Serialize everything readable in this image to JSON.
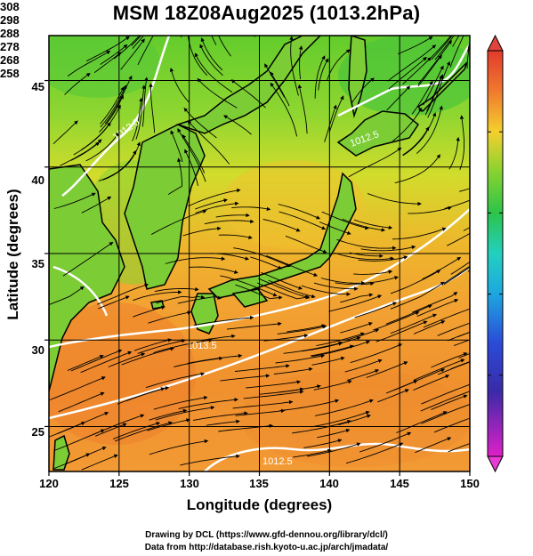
{
  "title": "MSM 18Z08Aug2025 (1013.2hPa)",
  "xlabel": "Longitude (degrees)",
  "ylabel": "Latitude  (degrees)",
  "credits": [
    "Drawing by DCL (https://www.gfd-dennou.org/library/dcl/)",
    "Data from http://database.rish.kyoto-u.ac.jp/arch/jmadata/"
  ],
  "chart_data": {
    "type": "map",
    "xlim": [
      120,
      150
    ],
    "ylim": [
      22.4,
      47.6
    ],
    "x_ticks": [
      "120",
      "125",
      "130",
      "135",
      "140",
      "145",
      "150"
    ],
    "y_ticks": [
      "25",
      "30",
      "35",
      "40",
      "45"
    ],
    "grid": true,
    "colorbar": {
      "range": [
        258,
        308
      ],
      "ticks": [
        "308",
        "298",
        "288",
        "278",
        "268",
        "258"
      ]
    },
    "contour_labels": [
      "1012.0",
      "1012.5",
      "1013.5",
      "1012.5"
    ]
  }
}
